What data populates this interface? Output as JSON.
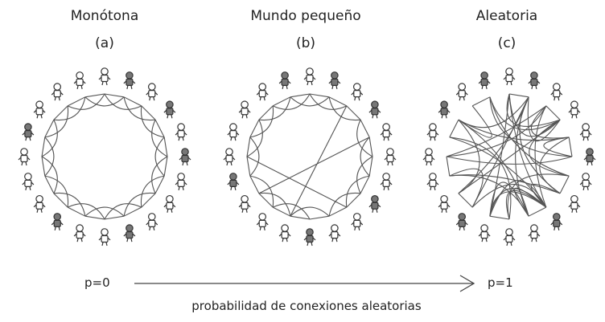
{
  "panels": [
    {
      "title": "Monótona",
      "letter": "(a)"
    },
    {
      "title": "Mundo pequeño",
      "letter": "(b)"
    },
    {
      "title": "Aleatoria",
      "letter": "(c)"
    }
  ],
  "p_start": "p=0",
  "p_end": "p=1",
  "axis_label": "probabilidad de conexiones aleatorias",
  "node_count_per_ring": 20,
  "colors": {
    "ink": "#333333",
    "edge": "#555555",
    "shade": "#777777"
  }
}
